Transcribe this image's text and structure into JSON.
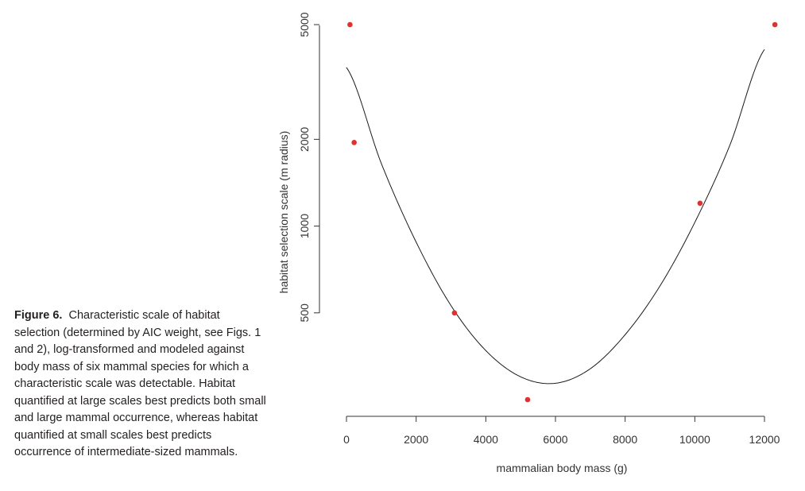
{
  "caption": {
    "label": "Figure 6.",
    "text": "Characteristic scale of habitat selection (determined by AIC weight, see Figs. 1 and 2), log-transformed and modeled against body mass of six mammal species for which a characteristic scale was detectable. Habitat quantified at large scales best predicts both small and large mammal occurrence, whereas habitat quantified at small scales best predicts occurrence of intermediate-sized mammals."
  },
  "chart_data": {
    "type": "scatter",
    "xlabel": "mammalian body mass (g)",
    "ylabel": "habitat selection scale (m radius)",
    "yscale": "log",
    "xlim": [
      -300,
      12700
    ],
    "ylim": [
      240,
      5300
    ],
    "x_ticks": [
      0,
      2000,
      4000,
      6000,
      8000,
      10000,
      12000
    ],
    "y_ticks": [
      500,
      1000,
      2000,
      5000
    ],
    "point_color": "#e03030",
    "points": [
      {
        "x": 100,
        "y": 5000
      },
      {
        "x": 220,
        "y": 1950
      },
      {
        "x": 3100,
        "y": 500
      },
      {
        "x": 5200,
        "y": 250
      },
      {
        "x": 10150,
        "y": 1200
      },
      {
        "x": 12300,
        "y": 5000
      }
    ],
    "fit_curve": {
      "description": "quadratic fit on log scale",
      "x": [
        0,
        1000,
        2000,
        3000,
        4000,
        5000,
        6000,
        7000,
        8000,
        9000,
        10000,
        11000,
        12000
      ],
      "y": [
        3550,
        1650,
        880,
        530,
        370,
        300,
        285,
        320,
        420,
        620,
        1030,
        1900,
        4100
      ]
    }
  }
}
